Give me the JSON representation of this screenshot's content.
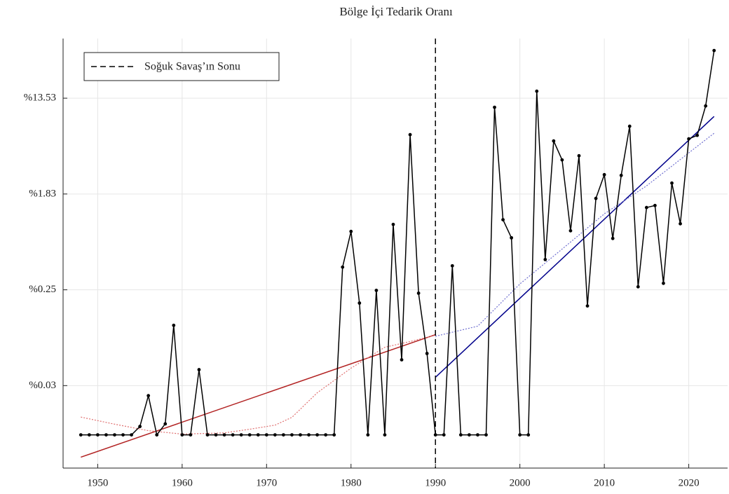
{
  "chart_data": {
    "type": "line",
    "title": "Bölge İçi Tedarik Oranı",
    "x": [
      1948,
      1949,
      1950,
      1951,
      1952,
      1953,
      1954,
      1955,
      1956,
      1957,
      1958,
      1959,
      1960,
      1961,
      1962,
      1963,
      1964,
      1965,
      1966,
      1967,
      1968,
      1969,
      1970,
      1971,
      1972,
      1973,
      1974,
      1975,
      1976,
      1977,
      1978,
      1979,
      1980,
      1981,
      1982,
      1983,
      1984,
      1985,
      1986,
      1987,
      1988,
      1989,
      1990,
      1991,
      1992,
      1993,
      1994,
      1995,
      1996,
      1997,
      1998,
      1999,
      2000,
      2001,
      2002,
      2003,
      2004,
      2005,
      2006,
      2007,
      2008,
      2009,
      2010,
      2011,
      2012,
      2013,
      2014,
      2015,
      2016,
      2017,
      2018,
      2019,
      2020,
      2021,
      2022,
      2023
    ],
    "series": [
      {
        "color": "#000000",
        "values": [
          0.012,
          0.012,
          0.012,
          0.012,
          0.012,
          0.012,
          0.012,
          0.0143,
          0.0272,
          0.012,
          0.0151,
          0.118,
          0.012,
          0.012,
          0.0468,
          0.012,
          0.012,
          0.012,
          0.012,
          0.012,
          0.012,
          0.012,
          0.012,
          0.012,
          0.012,
          0.012,
          0.012,
          0.012,
          0.012,
          0.012,
          0.012,
          0.398,
          0.838,
          0.188,
          0.012,
          0.245,
          0.012,
          0.97,
          0.0575,
          6.32,
          0.231,
          0.0656,
          0.012,
          0.012,
          0.409,
          0.012,
          0.012,
          0.012,
          0.012,
          11.19,
          1.07,
          0.734,
          0.012,
          0.012,
          15.66,
          0.466,
          5.54,
          3.73,
          0.85,
          4.07,
          0.177,
          1.67,
          2.74,
          0.724,
          2.7,
          7.53,
          0.264,
          1.38,
          1.44,
          0.284,
          2.3,
          0.984,
          5.79,
          6.23,
          11.51,
          36.6
        ]
      }
    ],
    "trends": [
      {
        "color": "#b22222",
        "style": "solid",
        "x": [
          1948,
          1990
        ],
        "values": [
          0.00753,
          0.0973
        ]
      },
      {
        "color": "#00008b",
        "style": "solid",
        "x": [
          1990,
          2023
        ],
        "values": [
          0.0399,
          9.24
        ]
      },
      {
        "color": "#e07070",
        "style": "dotted",
        "x": [
          1948,
          1952,
          1956,
          1960,
          1965,
          1968,
          1971,
          1973,
          1976,
          1980,
          1984,
          1987,
          1990
        ],
        "values": [
          0.0174,
          0.015,
          0.0131,
          0.0122,
          0.0125,
          0.0135,
          0.0147,
          0.0173,
          0.0289,
          0.0483,
          0.0747,
          0.0842,
          0.096
        ]
      },
      {
        "color": "#7070d0",
        "style": "dotted",
        "x": [
          1990,
          1995,
          2000,
          2005,
          2010,
          2015,
          2020,
          2023
        ],
        "values": [
          0.094,
          0.116,
          0.28,
          0.58,
          1.21,
          2.17,
          4.32,
          6.51
        ]
      }
    ],
    "vline": {
      "x": 1990,
      "label": "Soğuk Savaş’ın Sonu",
      "style": "dashed",
      "color": "#000000"
    },
    "legend": "upper left",
    "log_y": true,
    "grid": true,
    "xlim": [
      1945.9,
      2024.6
    ],
    "xticks": [
      1950,
      1960,
      1970,
      1980,
      1990,
      2000,
      2010,
      2020
    ],
    "ylim": [
      0.006,
      47
    ],
    "yticks": [
      {
        "value": 0.03355,
        "label": "%0.03"
      },
      {
        "value": 0.2479,
        "label": "%0.25"
      },
      {
        "value": 1.8316,
        "label": "%1.83"
      },
      {
        "value": 13.5335,
        "label": "%13.53"
      }
    ]
  }
}
